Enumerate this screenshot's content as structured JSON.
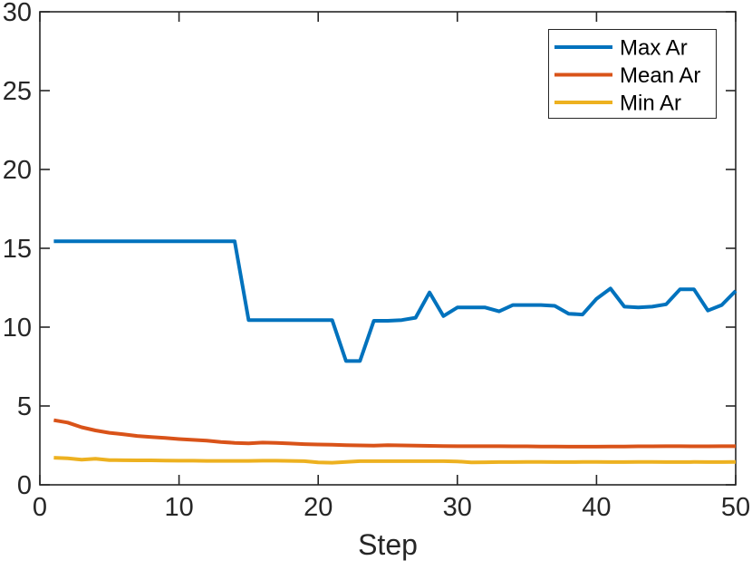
{
  "figure": {
    "background": "#ffffff",
    "axis_color": "#262626"
  },
  "chart_data": {
    "type": "line",
    "title": "",
    "xlabel": "Step",
    "ylabel": "",
    "xlim": [
      0,
      50
    ],
    "ylim": [
      0,
      30
    ],
    "x_ticks": [
      0,
      10,
      20,
      30,
      40,
      50
    ],
    "y_ticks": [
      0,
      5,
      10,
      15,
      20,
      25,
      30
    ],
    "grid": false,
    "legend_position": "top-right",
    "axis_color": "#262626",
    "x": [
      1,
      2,
      3,
      4,
      5,
      6,
      7,
      8,
      9,
      10,
      11,
      12,
      13,
      14,
      15,
      16,
      17,
      18,
      19,
      20,
      21,
      22,
      23,
      24,
      25,
      26,
      27,
      28,
      29,
      30,
      31,
      32,
      33,
      34,
      35,
      36,
      37,
      38,
      39,
      40,
      41,
      42,
      43,
      44,
      45,
      46,
      47,
      48,
      49,
      50
    ],
    "series": [
      {
        "name": "Max Ar",
        "color": "#0072BD",
        "values": [
          15.45,
          15.45,
          15.45,
          15.45,
          15.45,
          15.45,
          15.45,
          15.45,
          15.45,
          15.45,
          15.45,
          15.45,
          15.45,
          15.45,
          10.45,
          10.45,
          10.45,
          10.45,
          10.45,
          10.45,
          10.45,
          7.85,
          7.85,
          10.4,
          10.4,
          10.45,
          10.6,
          12.2,
          10.7,
          11.25,
          11.25,
          11.25,
          11.0,
          11.4,
          11.4,
          11.4,
          11.35,
          10.85,
          10.8,
          11.8,
          12.45,
          11.3,
          11.25,
          11.3,
          11.45,
          12.4,
          12.4,
          11.05,
          11.4,
          12.3
        ]
      },
      {
        "name": "Mean Ar",
        "color": "#D95319",
        "values": [
          4.1,
          3.95,
          3.65,
          3.45,
          3.3,
          3.2,
          3.1,
          3.03,
          2.97,
          2.9,
          2.85,
          2.8,
          2.72,
          2.66,
          2.63,
          2.68,
          2.66,
          2.62,
          2.58,
          2.56,
          2.54,
          2.52,
          2.5,
          2.48,
          2.52,
          2.5,
          2.48,
          2.47,
          2.46,
          2.45,
          2.45,
          2.45,
          2.45,
          2.44,
          2.44,
          2.43,
          2.43,
          2.42,
          2.42,
          2.42,
          2.43,
          2.43,
          2.44,
          2.44,
          2.45,
          2.45,
          2.44,
          2.44,
          2.45,
          2.45
        ]
      },
      {
        "name": "Min Ar",
        "color": "#EDB120",
        "values": [
          1.72,
          1.68,
          1.6,
          1.65,
          1.57,
          1.56,
          1.55,
          1.55,
          1.54,
          1.53,
          1.53,
          1.52,
          1.52,
          1.52,
          1.52,
          1.53,
          1.53,
          1.52,
          1.5,
          1.42,
          1.4,
          1.45,
          1.5,
          1.5,
          1.5,
          1.5,
          1.5,
          1.5,
          1.5,
          1.48,
          1.42,
          1.43,
          1.44,
          1.44,
          1.45,
          1.45,
          1.44,
          1.44,
          1.45,
          1.45,
          1.44,
          1.44,
          1.45,
          1.45,
          1.44,
          1.44,
          1.45,
          1.44,
          1.44,
          1.45
        ]
      }
    ]
  }
}
